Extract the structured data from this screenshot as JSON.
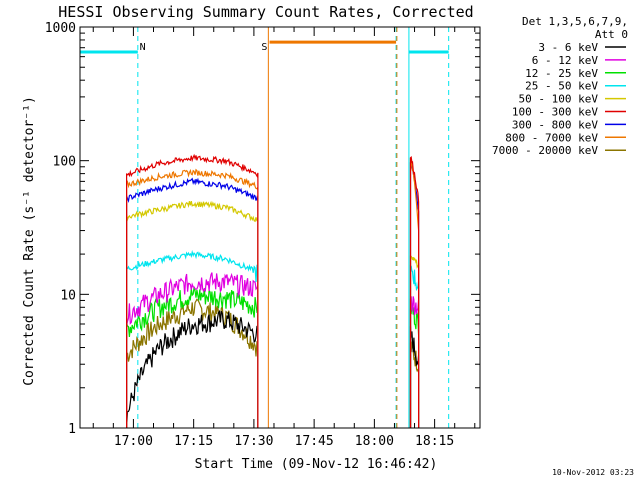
{
  "chart_data": {
    "type": "line",
    "title": "HESSI Observing Summary Count Rates, Corrected",
    "xlabel": "Start Time (09-Nov-12 16:46:42)",
    "ylabel": "Corrected Count Rate (s⁻¹ detector⁻¹)",
    "yscale": "log",
    "ylim": [
      1,
      1000
    ],
    "xlim_minutes": [
      1006.7,
      1106.3
    ],
    "x_tick_labels": [
      "17:00",
      "17:15",
      "17:30",
      "17:45",
      "18:00",
      "18:15"
    ],
    "x_tick_minutes": [
      1020,
      1035,
      1050,
      1065,
      1080,
      1095
    ],
    "y_tick_labels": [
      "1",
      "10",
      "100",
      "1000"
    ],
    "y_tick_values": [
      1,
      10,
      100,
      1000
    ],
    "legend_header": [
      "Det 1,3,5,6,7,9,",
      "Att 0"
    ],
    "series": [
      {
        "name": "3 - 6 keV",
        "color": "#000000",
        "seg1": [
          1.2,
          4.0,
          6.0,
          6.5,
          5.0
        ],
        "seg2": [
          5.0,
          3.0
        ]
      },
      {
        "name": "6 - 12 keV",
        "color": "#e000e0",
        "seg1": [
          7.0,
          10.0,
          12.5,
          12.5,
          11.0
        ],
        "seg2": [
          9.0,
          8.0
        ]
      },
      {
        "name": "12 - 25 keV",
        "color": "#00e000",
        "seg1": [
          5.5,
          8.0,
          10.0,
          9.5,
          8.0
        ],
        "seg2": [
          8.0,
          6.0
        ]
      },
      {
        "name": "25 - 50 keV",
        "color": "#00e5ee",
        "seg1": [
          15.5,
          18.0,
          20.0,
          18.5,
          14.5
        ],
        "seg2": [
          16.0,
          11.0
        ]
      },
      {
        "name": "50 - 100 keV",
        "color": "#d4c800",
        "seg1": [
          38.0,
          43.0,
          48.0,
          45.0,
          36.0
        ],
        "seg2": [
          20.0,
          16.0
        ]
      },
      {
        "name": "100 - 300 keV",
        "color": "#e00000",
        "seg1": [
          78.0,
          95.0,
          105.0,
          100.0,
          80.0
        ],
        "seg2": [
          108.0,
          50.0
        ]
      },
      {
        "name": "300 - 800 keV",
        "color": "#0000e8",
        "seg1": [
          52.0,
          62.0,
          70.0,
          65.0,
          52.0
        ],
        "seg2": [
          100.0,
          40.0
        ]
      },
      {
        "name": "800 - 7000 keV",
        "color": "#ee7700",
        "seg1": [
          66.0,
          76.0,
          82.0,
          78.0,
          64.0
        ],
        "seg2": [
          105.0,
          30.0
        ]
      },
      {
        "name": "7000 - 20000 keV",
        "color": "#8b7500",
        "seg1": [
          3.5,
          6.0,
          8.0,
          7.0,
          4.0
        ],
        "seg2": [
          4.0,
          3.0
        ]
      }
    ],
    "segments_minutes": [
      [
        1018.3,
        1051.0
      ],
      [
        1089.0,
        1091.0
      ]
    ],
    "saa_bars": [
      {
        "from": 1006.7,
        "to": 1021.1,
        "level": 650,
        "color": "#00e5ee"
      },
      {
        "from": 1088.6,
        "to": 1098.5,
        "level": 650,
        "color": "#00e5ee"
      },
      {
        "from": 1053.9,
        "to": 1085.4,
        "level": 770,
        "color": "#ee7700"
      }
    ],
    "night_lines": [
      1021.1,
      1085.4,
      1098.5
    ],
    "day_lines": [
      1006.7,
      1088.6
    ],
    "annotations": [
      {
        "text": "N",
        "at_minutes": 1022.3,
        "color": "#00e5ee"
      },
      {
        "text": "S",
        "at_minutes": 1052.6,
        "color": "#ee7700"
      }
    ],
    "vertical_markers": [
      {
        "at": 1053.6,
        "color": "#ee7700",
        "style": "solid"
      },
      {
        "at": 1085.6,
        "color": "#ee7700",
        "style": "dashed"
      }
    ]
  },
  "timestamp": "10-Nov-2012 03:23"
}
